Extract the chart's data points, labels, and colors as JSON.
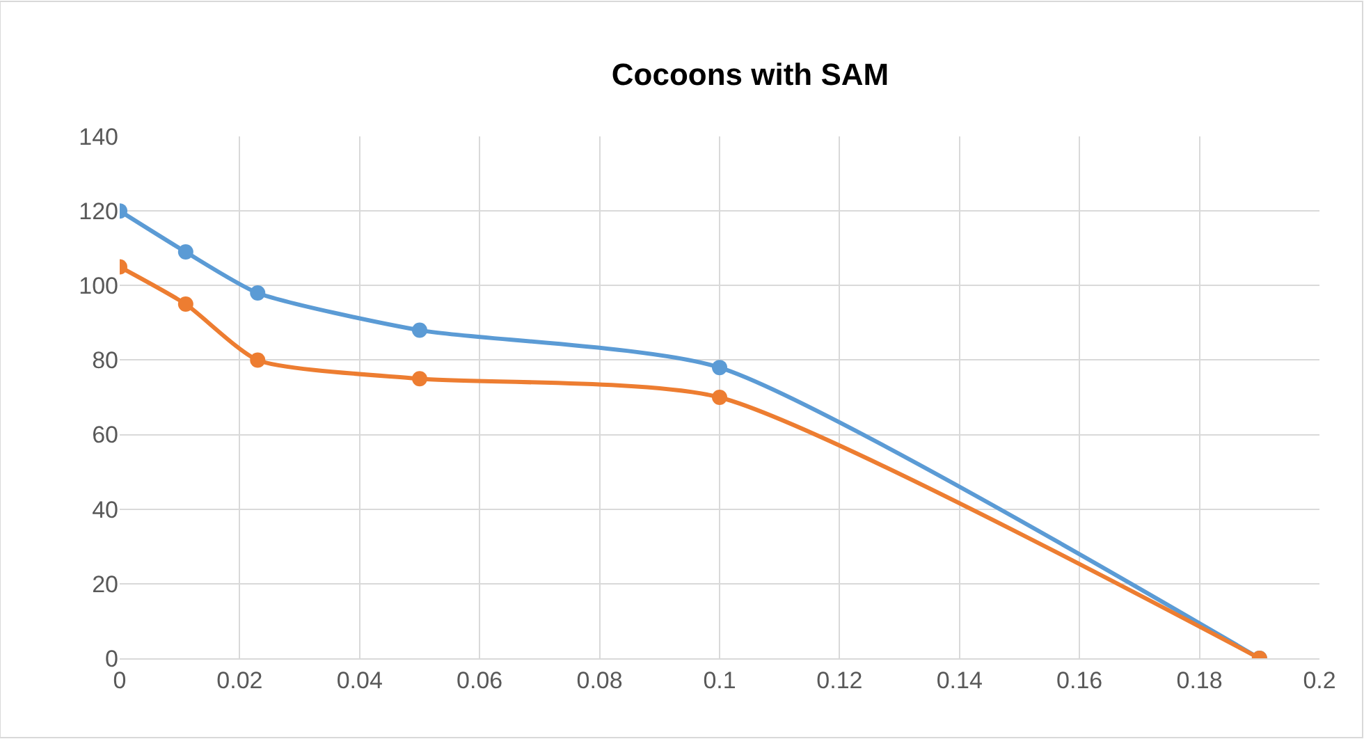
{
  "chart_data": {
    "type": "line",
    "title": "Cocoons with SAM",
    "x": [
      0,
      0.011,
      0.023,
      0.05,
      0.1,
      0.19
    ],
    "series": [
      {
        "color": "#5b9bd5",
        "values": [
          120,
          109,
          98,
          88,
          78,
          0
        ]
      },
      {
        "color": "#ed7d31",
        "values": [
          105,
          95,
          80,
          75,
          70,
          0
        ]
      }
    ],
    "xlim": [
      0,
      0.2
    ],
    "xticks": [
      0,
      0.02,
      0.04,
      0.06,
      0.08,
      0.1,
      0.12,
      0.14,
      0.16,
      0.18,
      0.2
    ],
    "ylim": [
      0,
      140
    ],
    "yticks": [
      0,
      20,
      40,
      60,
      80,
      100,
      120,
      140
    ],
    "grid": true,
    "marker": "circle",
    "line_style": "solid"
  }
}
